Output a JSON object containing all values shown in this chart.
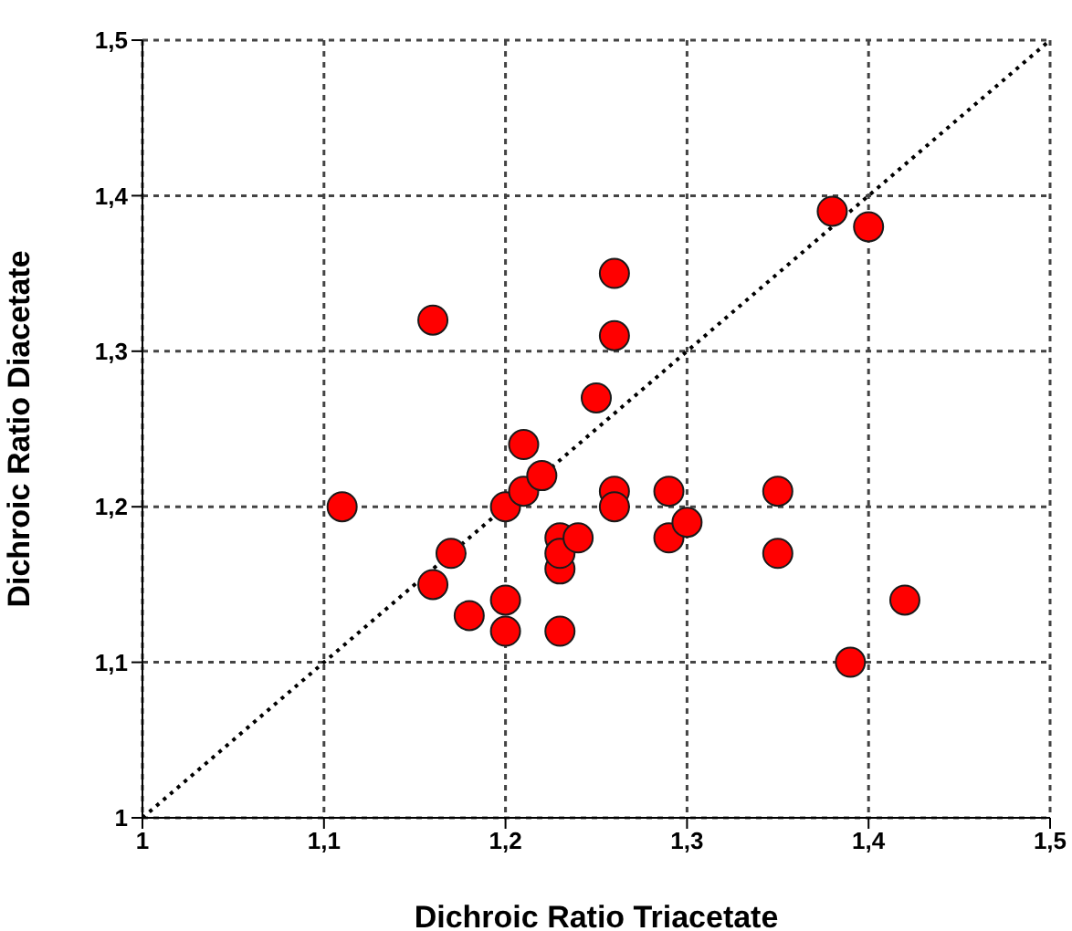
{
  "chart_data": {
    "type": "scatter",
    "xlabel": "Dichroic Ratio Triacetate",
    "ylabel": "Dichroic Ratio Diacetate",
    "xlim": [
      1,
      1.5
    ],
    "ylim": [
      1,
      1.5
    ],
    "xticks": [
      {
        "value": 1,
        "label": "1"
      },
      {
        "value": 1.1,
        "label": "1,1"
      },
      {
        "value": 1.2,
        "label": "1,2"
      },
      {
        "value": 1.3,
        "label": "1,3"
      },
      {
        "value": 1.4,
        "label": "1,4"
      },
      {
        "value": 1.5,
        "label": "1,5"
      }
    ],
    "yticks": [
      {
        "value": 1,
        "label": "1"
      },
      {
        "value": 1.1,
        "label": "1,1"
      },
      {
        "value": 1.2,
        "label": "1,2"
      },
      {
        "value": 1.3,
        "label": "1,3"
      },
      {
        "value": 1.4,
        "label": "1,4"
      },
      {
        "value": 1.5,
        "label": "1,5"
      }
    ],
    "grid": true,
    "legend": false,
    "marker": "circle",
    "series": [
      {
        "type": "scatter",
        "color": "#ff0000",
        "x": [
          1.11,
          1.16,
          1.16,
          1.17,
          1.18,
          1.2,
          1.2,
          1.2,
          1.21,
          1.21,
          1.22,
          1.23,
          1.23,
          1.23,
          1.23,
          1.24,
          1.25,
          1.26,
          1.26,
          1.26,
          1.26,
          1.29,
          1.29,
          1.3,
          1.35,
          1.35,
          1.38,
          1.39,
          1.4,
          1.42
        ],
        "values": [
          1.2,
          1.32,
          1.15,
          1.17,
          1.13,
          1.2,
          1.14,
          1.12,
          1.24,
          1.21,
          1.22,
          1.18,
          1.16,
          1.17,
          1.12,
          1.18,
          1.27,
          1.35,
          1.31,
          1.21,
          1.2,
          1.21,
          1.18,
          1.19,
          1.21,
          1.17,
          1.39,
          1.1,
          1.38,
          1.14
        ]
      },
      {
        "type": "line",
        "color": "#000000",
        "line_style": "dotted",
        "marker": "none",
        "x": [
          1,
          1.5
        ],
        "values": [
          1,
          1.5
        ]
      }
    ]
  }
}
